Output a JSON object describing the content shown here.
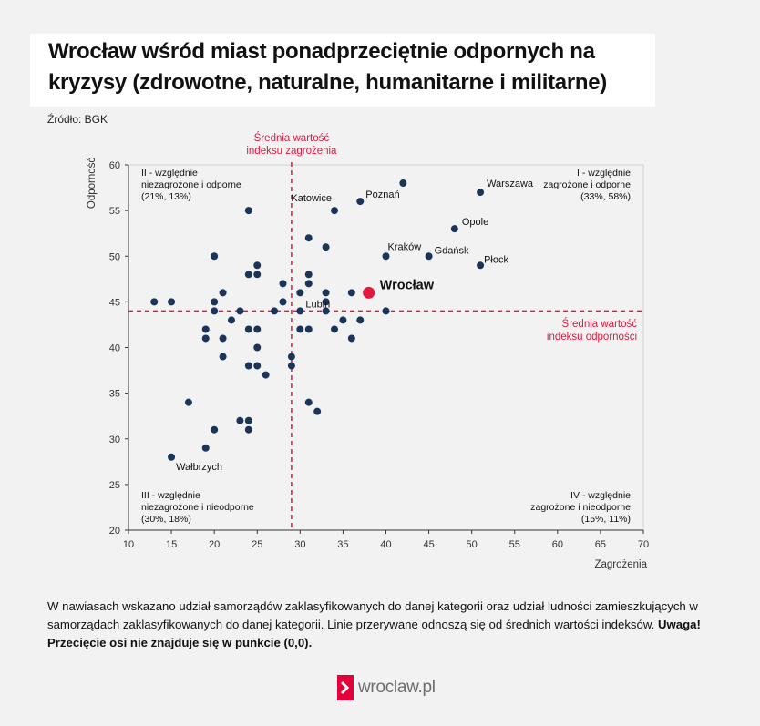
{
  "title_lines": [
    "Wrocław wśród miast ponadprzeciętnie odpornych na",
    "kryzysy (zdrowotne, naturalne, humanitarne i militarne)"
  ],
  "source": "Źródło: BGK",
  "footnote": {
    "text": "W nawiasach wskazano udział samorządów zaklasyfikowanych do danej kategorii oraz udział ludności zamieszkujących w samorządach zaklasyfikowanych do danej kategorii. Linie przerywane odnoszą się od średnich wartości indeksów. ",
    "bold": "Uwaga! Przecięcie osi nie znajduje się w punkcie (0,0)."
  },
  "logo": {
    "text": "wroclaw.pl"
  },
  "colors": {
    "point": "#1c3557",
    "highlight": "#e4173f",
    "avg_line": "#e4173f",
    "axis": "#333333"
  },
  "chart_data": {
    "type": "scatter",
    "xlabel": "Zagrożenia",
    "ylabel": "Odporność",
    "xlim": [
      10,
      70
    ],
    "ylim": [
      20,
      60
    ],
    "xticks": [
      10,
      15,
      20,
      25,
      30,
      35,
      40,
      45,
      50,
      55,
      60,
      65,
      70
    ],
    "yticks": [
      20,
      25,
      30,
      35,
      40,
      45,
      50,
      55,
      60
    ],
    "grid": false,
    "avg_threat": 29,
    "avg_resilience": 44,
    "avg_threat_label": [
      "Średnia wartość",
      "indeksu zagrożenia"
    ],
    "avg_resilience_label": [
      "Średnia wartość",
      "indeksu odporności"
    ],
    "quadrants": [
      {
        "id": "II",
        "corner": "top-left",
        "lines": [
          "II - względnie",
          "niezagrożone i odporne",
          "(21%, 13%)"
        ]
      },
      {
        "id": "I",
        "corner": "top-right",
        "lines": [
          "I - względnie",
          "zagrożone i odporne",
          "(33%, 58%)"
        ]
      },
      {
        "id": "III",
        "corner": "bottom-left",
        "lines": [
          "III - względnie",
          "niezagrożone i nieodporne",
          "(30%, 18%)"
        ]
      },
      {
        "id": "IV",
        "corner": "bottom-right",
        "lines": [
          "IV - względnie",
          "zagrożone i nieodporne",
          "(15%, 11%)"
        ]
      }
    ],
    "points": [
      {
        "x": 42,
        "y": 58
      },
      {
        "x": 51,
        "y": 57,
        "label": "Warszawa"
      },
      {
        "x": 37,
        "y": 56,
        "label": "Poznań"
      },
      {
        "x": 24,
        "y": 55
      },
      {
        "x": 34,
        "y": 55,
        "label": "Katowice"
      },
      {
        "x": 48,
        "y": 53,
        "label": "Opole"
      },
      {
        "x": 31,
        "y": 52
      },
      {
        "x": 33,
        "y": 51
      },
      {
        "x": 20,
        "y": 50
      },
      {
        "x": 40,
        "y": 50,
        "label": "Kraków"
      },
      {
        "x": 45,
        "y": 50,
        "label": "Gdańsk"
      },
      {
        "x": 25,
        "y": 49
      },
      {
        "x": 51,
        "y": 49,
        "label": "Płock"
      },
      {
        "x": 24,
        "y": 48
      },
      {
        "x": 25,
        "y": 48
      },
      {
        "x": 31,
        "y": 48
      },
      {
        "x": 28,
        "y": 47
      },
      {
        "x": 31,
        "y": 47
      },
      {
        "x": 21,
        "y": 46
      },
      {
        "x": 30,
        "y": 46
      },
      {
        "x": 33,
        "y": 46
      },
      {
        "x": 36,
        "y": 46
      },
      {
        "x": 38,
        "y": 46,
        "label": "Wrocław",
        "highlight": true
      },
      {
        "x": 13,
        "y": 45
      },
      {
        "x": 15,
        "y": 45
      },
      {
        "x": 20,
        "y": 45
      },
      {
        "x": 28,
        "y": 45
      },
      {
        "x": 33,
        "y": 45
      },
      {
        "x": 20,
        "y": 44
      },
      {
        "x": 23,
        "y": 44
      },
      {
        "x": 27,
        "y": 44
      },
      {
        "x": 30,
        "y": 44,
        "label": "Lubin"
      },
      {
        "x": 33,
        "y": 44
      },
      {
        "x": 40,
        "y": 44
      },
      {
        "x": 22,
        "y": 43
      },
      {
        "x": 35,
        "y": 43
      },
      {
        "x": 37,
        "y": 43
      },
      {
        "x": 19,
        "y": 42
      },
      {
        "x": 24,
        "y": 42
      },
      {
        "x": 25,
        "y": 42
      },
      {
        "x": 30,
        "y": 42
      },
      {
        "x": 31,
        "y": 42
      },
      {
        "x": 34,
        "y": 42
      },
      {
        "x": 19,
        "y": 41
      },
      {
        "x": 21,
        "y": 41
      },
      {
        "x": 36,
        "y": 41
      },
      {
        "x": 25,
        "y": 40
      },
      {
        "x": 21,
        "y": 39
      },
      {
        "x": 29,
        "y": 39
      },
      {
        "x": 24,
        "y": 38
      },
      {
        "x": 25,
        "y": 38
      },
      {
        "x": 29,
        "y": 38
      },
      {
        "x": 26,
        "y": 37
      },
      {
        "x": 17,
        "y": 34
      },
      {
        "x": 31,
        "y": 34
      },
      {
        "x": 32,
        "y": 33
      },
      {
        "x": 23,
        "y": 32
      },
      {
        "x": 24,
        "y": 32
      },
      {
        "x": 20,
        "y": 31
      },
      {
        "x": 24,
        "y": 31
      },
      {
        "x": 19,
        "y": 29
      },
      {
        "x": 15,
        "y": 28,
        "label": "Wałbrzych"
      }
    ]
  }
}
